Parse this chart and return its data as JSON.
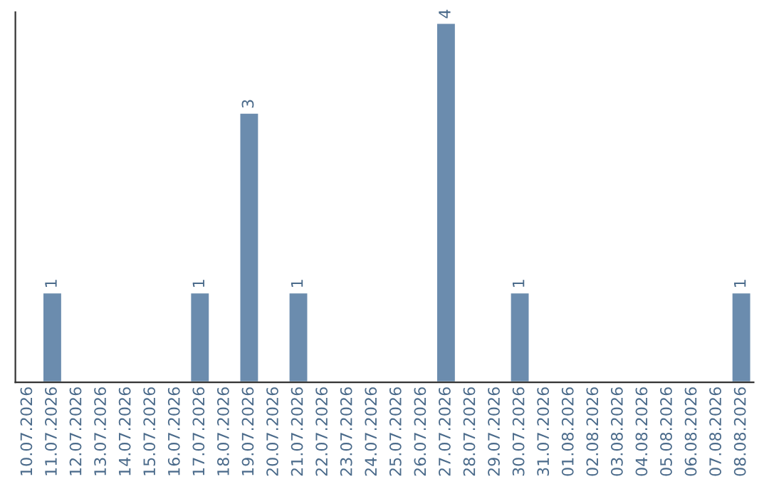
{
  "chart_data": {
    "type": "bar",
    "categories": [
      "10.07.2026",
      "11.07.2026",
      "12.07.2026",
      "13.07.2026",
      "14.07.2026",
      "15.07.2026",
      "16.07.2026",
      "17.07.2026",
      "18.07.2026",
      "19.07.2026",
      "20.07.2026",
      "21.07.2026",
      "22.07.2026",
      "23.07.2026",
      "24.07.2026",
      "25.07.2026",
      "26.07.2026",
      "27.07.2026",
      "28.07.2026",
      "29.07.2026",
      "30.07.2026",
      "31.07.2026",
      "01.08.2026",
      "02.08.2026",
      "03.08.2026",
      "04.08.2026",
      "05.08.2026",
      "06.08.2026",
      "07.08.2026",
      "08.08.2026"
    ],
    "values": [
      null,
      1,
      null,
      null,
      null,
      null,
      null,
      1,
      null,
      3,
      null,
      1,
      null,
      null,
      null,
      null,
      null,
      4,
      null,
      null,
      1,
      null,
      null,
      null,
      null,
      null,
      null,
      null,
      null,
      1
    ],
    "value_labels": [
      null,
      "1",
      null,
      null,
      null,
      null,
      null,
      "1",
      null,
      "3",
      null,
      "1",
      null,
      null,
      null,
      null,
      null,
      "4",
      null,
      null,
      "1",
      null,
      null,
      null,
      null,
      null,
      null,
      null,
      null,
      "1"
    ],
    "color": "#6b8cae",
    "grid": false,
    "legend": false,
    "tick_labels": "x"
  }
}
